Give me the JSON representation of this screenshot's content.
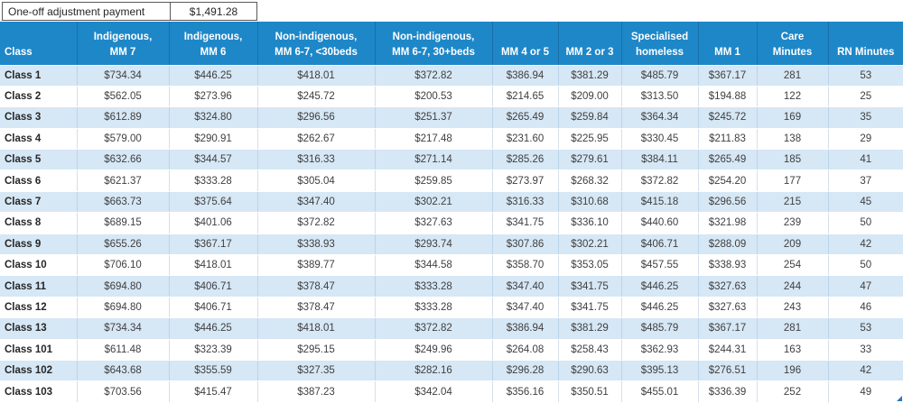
{
  "topbar": {
    "label": "One-off adjustment payment",
    "value": "$1,491.28"
  },
  "table": {
    "columns": [
      {
        "line1": "",
        "line2": "Class"
      },
      {
        "line1": "Indigenous,",
        "line2": "MM 7"
      },
      {
        "line1": "Indigenous,",
        "line2": "MM 6"
      },
      {
        "line1": "Non-indigenous,",
        "line2": "MM 6-7, <30beds"
      },
      {
        "line1": "Non-indigenous,",
        "line2": "MM 6-7, 30+beds"
      },
      {
        "line1": "",
        "line2": "MM 4 or 5"
      },
      {
        "line1": "",
        "line2": "MM 2 or 3"
      },
      {
        "line1": "Specialised",
        "line2": "homeless"
      },
      {
        "line1": "",
        "line2": "MM 1"
      },
      {
        "line1": "Care",
        "line2": "Minutes"
      },
      {
        "line1": "",
        "line2": "RN Minutes"
      }
    ],
    "rows": [
      {
        "class": "Class 1",
        "values": [
          "$734.34",
          "$446.25",
          "$418.01",
          "$372.82",
          "$386.94",
          "$381.29",
          "$485.79",
          "$367.17",
          "281",
          "53"
        ]
      },
      {
        "class": "Class 2",
        "values": [
          "$562.05",
          "$273.96",
          "$245.72",
          "$200.53",
          "$214.65",
          "$209.00",
          "$313.50",
          "$194.88",
          "122",
          "25"
        ]
      },
      {
        "class": "Class 3",
        "values": [
          "$612.89",
          "$324.80",
          "$296.56",
          "$251.37",
          "$265.49",
          "$259.84",
          "$364.34",
          "$245.72",
          "169",
          "35"
        ]
      },
      {
        "class": "Class 4",
        "values": [
          "$579.00",
          "$290.91",
          "$262.67",
          "$217.48",
          "$231.60",
          "$225.95",
          "$330.45",
          "$211.83",
          "138",
          "29"
        ]
      },
      {
        "class": "Class 5",
        "values": [
          "$632.66",
          "$344.57",
          "$316.33",
          "$271.14",
          "$285.26",
          "$279.61",
          "$384.11",
          "$265.49",
          "185",
          "41"
        ]
      },
      {
        "class": "Class 6",
        "values": [
          "$621.37",
          "$333.28",
          "$305.04",
          "$259.85",
          "$273.97",
          "$268.32",
          "$372.82",
          "$254.20",
          "177",
          "37"
        ]
      },
      {
        "class": "Class 7",
        "values": [
          "$663.73",
          "$375.64",
          "$347.40",
          "$302.21",
          "$316.33",
          "$310.68",
          "$415.18",
          "$296.56",
          "215",
          "45"
        ]
      },
      {
        "class": "Class 8",
        "values": [
          "$689.15",
          "$401.06",
          "$372.82",
          "$327.63",
          "$341.75",
          "$336.10",
          "$440.60",
          "$321.98",
          "239",
          "50"
        ]
      },
      {
        "class": "Class 9",
        "values": [
          "$655.26",
          "$367.17",
          "$338.93",
          "$293.74",
          "$307.86",
          "$302.21",
          "$406.71",
          "$288.09",
          "209",
          "42"
        ]
      },
      {
        "class": "Class 10",
        "values": [
          "$706.10",
          "$418.01",
          "$389.77",
          "$344.58",
          "$358.70",
          "$353.05",
          "$457.55",
          "$338.93",
          "254",
          "50"
        ]
      },
      {
        "class": "Class 11",
        "values": [
          "$694.80",
          "$406.71",
          "$378.47",
          "$333.28",
          "$347.40",
          "$341.75",
          "$446.25",
          "$327.63",
          "244",
          "47"
        ]
      },
      {
        "class": "Class 12",
        "values": [
          "$694.80",
          "$406.71",
          "$378.47",
          "$333.28",
          "$347.40",
          "$341.75",
          "$446.25",
          "$327.63",
          "243",
          "46"
        ]
      },
      {
        "class": "Class 13",
        "values": [
          "$734.34",
          "$446.25",
          "$418.01",
          "$372.82",
          "$386.94",
          "$381.29",
          "$485.79",
          "$367.17",
          "281",
          "53"
        ]
      },
      {
        "class": "Class 101",
        "values": [
          "$611.48",
          "$323.39",
          "$295.15",
          "$249.96",
          "$264.08",
          "$258.43",
          "$362.93",
          "$244.31",
          "163",
          "33"
        ]
      },
      {
        "class": "Class 102",
        "values": [
          "$643.68",
          "$355.59",
          "$327.35",
          "$282.16",
          "$296.28",
          "$290.63",
          "$395.13",
          "$276.51",
          "196",
          "42"
        ]
      },
      {
        "class": "Class 103",
        "values": [
          "$703.56",
          "$415.47",
          "$387.23",
          "$342.04",
          "$356.16",
          "$350.51",
          "$455.01",
          "$336.39",
          "252",
          "49"
        ]
      }
    ]
  },
  "colors": {
    "header_bg": "#1e87c8",
    "header_divider": "#1a6fa9",
    "stripe_bg": "#d6e7f5",
    "gridline": "#bcd4ea",
    "box_border": "#595959",
    "data_text": "#3f3f3f"
  }
}
